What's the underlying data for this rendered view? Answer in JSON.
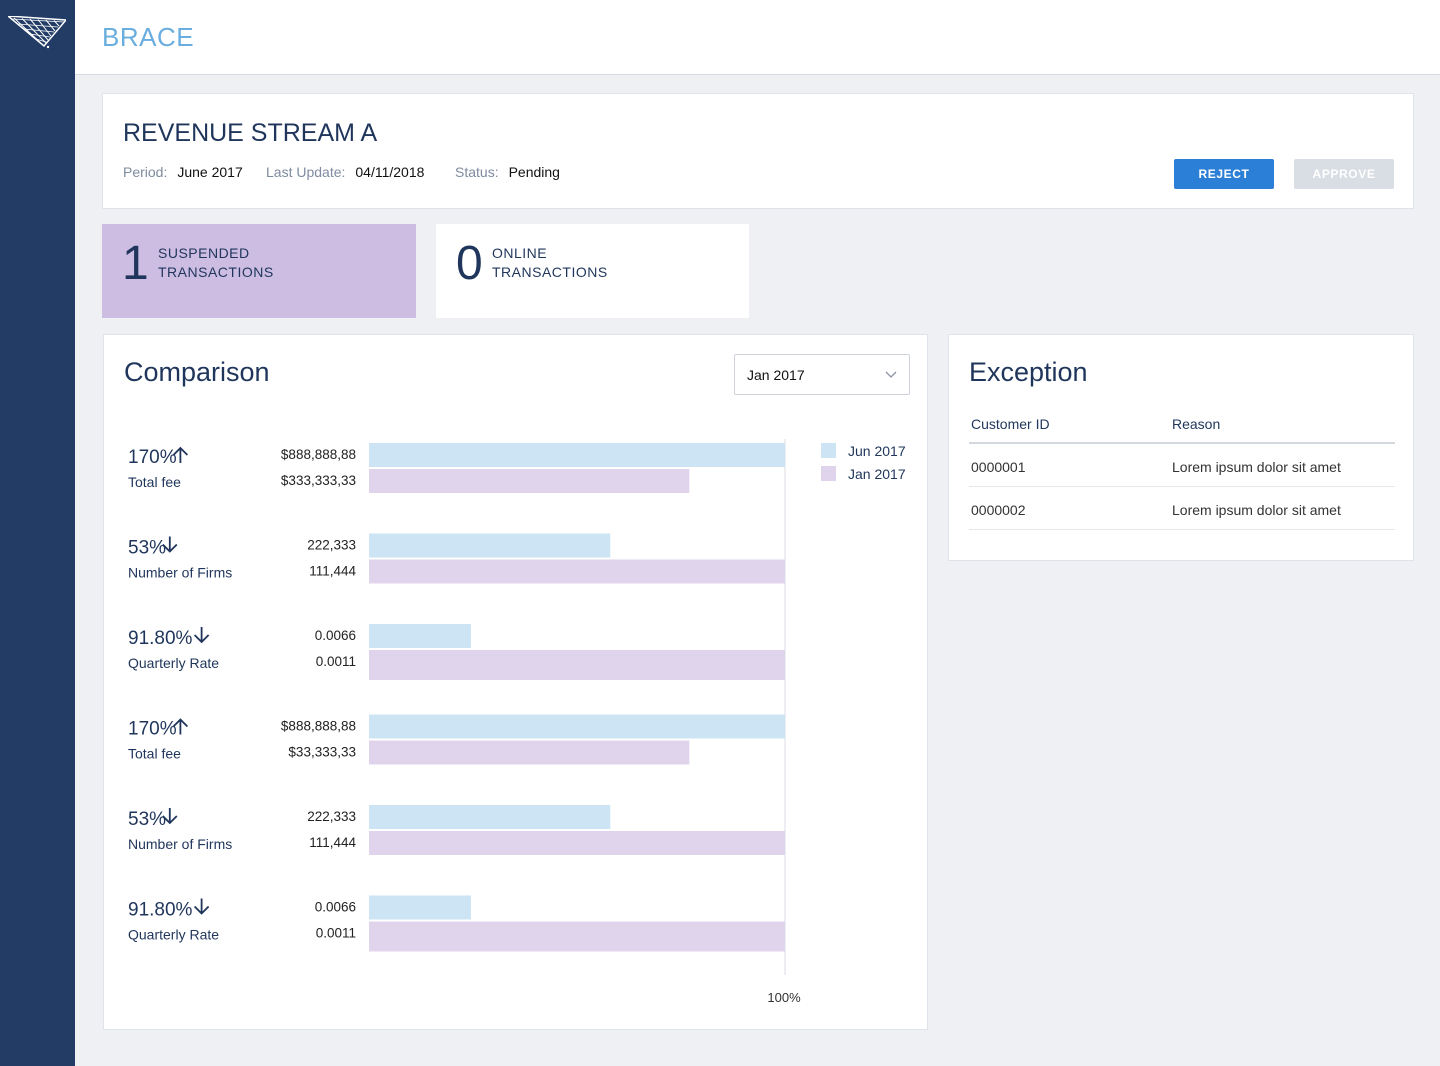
{
  "app": {
    "title": "BRACE"
  },
  "header": {
    "title": "REVENUE STREAM A",
    "period_label": "Period:",
    "period_value": "June 2017",
    "last_update_label": "Last Update:",
    "last_update_value": "04/11/2018",
    "status_label": "Status:",
    "status_value": "Pending",
    "reject_label": "REJECT",
    "approve_label": "APPROVE"
  },
  "stats": [
    {
      "count": "1",
      "label_line1": "SUSPENDED",
      "label_line2": "TRANSACTIONS"
    },
    {
      "count": "0",
      "label_line1": "ONLINE",
      "label_line2": "TRANSACTIONS"
    }
  ],
  "comparison": {
    "title": "Comparison",
    "period_select": "Jan 2017"
  },
  "colors": {
    "series_jun": "#cde4f4",
    "series_jan": "#e0d3ec",
    "accent": "#2b7fd6",
    "brand": "#6aaedf",
    "sidebar": "#223c66"
  },
  "chart_data": {
    "type": "bar",
    "orientation": "horizontal",
    "x_axis_label": "100%",
    "legend_placement": "top-right",
    "series": [
      {
        "name": "Jun 2017"
      },
      {
        "name": "Jan 2017"
      }
    ],
    "groups": [
      {
        "change": "170%",
        "direction": "up",
        "metric": "Total fee",
        "jun_label": "$888,888,88",
        "jan_label": "$333,333,33",
        "jun_pct": 100,
        "jan_pct": 77
      },
      {
        "change": "53%",
        "direction": "down",
        "metric": "Number of Firms",
        "jun_label": "222,333",
        "jan_label": "111,444",
        "jun_pct": 58,
        "jan_pct": 100
      },
      {
        "change": "91.80%",
        "direction": "down",
        "metric": "Quarterly Rate",
        "jun_label": "0.0066",
        "jan_label": "0.0011",
        "jun_pct": 24.5,
        "jan_pct": 100
      },
      {
        "change": "170%",
        "direction": "up",
        "metric": "Total fee",
        "jun_label": "$888,888,88",
        "jan_label": "$33,333,33",
        "jun_pct": 100,
        "jan_pct": 77
      },
      {
        "change": "53%",
        "direction": "down",
        "metric": "Number of Firms",
        "jun_label": "222,333",
        "jan_label": "111,444",
        "jun_pct": 58,
        "jan_pct": 100
      },
      {
        "change": "91.80%",
        "direction": "down",
        "metric": "Quarterly Rate",
        "jun_label": "0.0066",
        "jan_label": "0.0011",
        "jun_pct": 24.5,
        "jan_pct": 100
      }
    ]
  },
  "exception": {
    "title": "Exception",
    "columns": [
      "Customer ID",
      "Reason"
    ],
    "rows": [
      {
        "customer_id": "0000001",
        "reason": "Lorem ipsum dolor sit amet"
      },
      {
        "customer_id": "0000002",
        "reason": "Lorem ipsum dolor sit amet"
      }
    ]
  }
}
